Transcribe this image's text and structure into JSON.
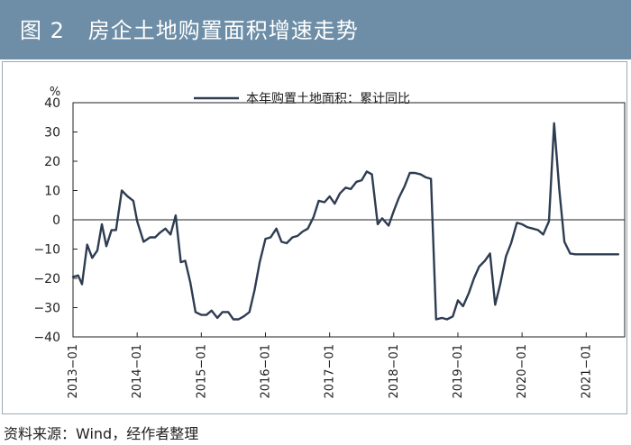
{
  "header": {
    "title": "图 2   房企土地购置面积增速走势"
  },
  "source": "资料来源：Wind，经作者整理",
  "colors": {
    "header_bg": "#6d8ea6",
    "line": "#2e3c52"
  },
  "chart_data": {
    "type": "line",
    "title": "房企土地购置面积增速走势",
    "xlabel": "",
    "ylabel": "%",
    "ylim": [
      -40,
      40
    ],
    "yticks": [
      40,
      30,
      20,
      10,
      0,
      -10,
      -20,
      -30,
      -40
    ],
    "ytick_labels": [
      "40",
      "30",
      "20",
      "10",
      "0",
      "−10",
      "−20",
      "−30",
      "−40"
    ],
    "xticks": [
      "2013−01",
      "2014−01",
      "2015−01",
      "2016−01",
      "2017−01",
      "2018−01",
      "2019−01",
      "2020−01",
      "2021−01"
    ],
    "xlim": [
      2013.0,
      2021.6
    ],
    "legend": {
      "position": "top-center",
      "label": "本年购置土地面积：累计同比"
    },
    "series": [
      {
        "name": "本年购置土地面积：累计同比",
        "x": [
          2013.0,
          2013.08,
          2013.14,
          2013.22,
          2013.3,
          2013.38,
          2013.45,
          2013.52,
          2013.6,
          2013.67,
          2013.76,
          2013.85,
          2013.94,
          2014.0,
          2014.1,
          2014.2,
          2014.28,
          2014.35,
          2014.44,
          2014.52,
          2014.6,
          2014.68,
          2014.75,
          2014.83,
          2014.91,
          2015.0,
          2015.08,
          2015.16,
          2015.25,
          2015.33,
          2015.42,
          2015.5,
          2015.58,
          2015.66,
          2015.75,
          2015.83,
          2015.91,
          2016.0,
          2016.08,
          2016.17,
          2016.25,
          2016.33,
          2016.42,
          2016.5,
          2016.58,
          2016.66,
          2016.75,
          2016.83,
          2016.92,
          2017.0,
          2017.08,
          2017.16,
          2017.25,
          2017.33,
          2017.42,
          2017.5,
          2017.58,
          2017.66,
          2017.75,
          2017.82,
          2017.92,
          2018.0,
          2018.08,
          2018.17,
          2018.25,
          2018.33,
          2018.42,
          2018.5,
          2018.58,
          2018.66,
          2018.75,
          2018.83,
          2018.92,
          2019.0,
          2019.08,
          2019.17,
          2019.25,
          2019.33,
          2019.42,
          2019.5,
          2019.58,
          2019.66,
          2019.75,
          2019.83,
          2019.92,
          2020.0,
          2020.08,
          2020.17,
          2020.25,
          2020.33,
          2020.42,
          2020.5,
          2020.58,
          2020.66,
          2020.75,
          2020.83,
          2020.92,
          2021.0,
          2021.08,
          2021.17,
          2021.25,
          2021.33,
          2021.42,
          2021.5
        ],
        "values": [
          -19.5,
          -19,
          -22,
          -8.5,
          -13,
          -10.5,
          -1.5,
          -9,
          -3.5,
          -3.5,
          10,
          8,
          6.5,
          -0.5,
          -7.5,
          -6,
          -6,
          -4.5,
          -3,
          -5,
          1.5,
          -14.5,
          -14,
          -21.5,
          -31.5,
          -32.5,
          -32.5,
          -31,
          -33.5,
          -31.5,
          -31.5,
          -34,
          -34,
          -33,
          -31.5,
          -24,
          -14.5,
          -6.5,
          -6,
          -3,
          -7.5,
          -8,
          -6,
          -5.5,
          -4,
          -3,
          1,
          6.5,
          6,
          8,
          5.5,
          9,
          11,
          10.5,
          13,
          13.5,
          16.5,
          15.5,
          -1.5,
          0.5,
          -2,
          3,
          7.5,
          11.5,
          16,
          16,
          15.5,
          14.5,
          14,
          -34,
          -33.5,
          -34,
          -33,
          -27.5,
          -29.5,
          -25,
          -20,
          -16,
          -14,
          -11.5,
          -29,
          -22,
          -12.5,
          -8,
          -1,
          -1.5,
          -2.5,
          -3,
          -3.5,
          -5,
          -0.5,
          33,
          10.5,
          -7.5,
          -11.5,
          -11.8,
          -11.8,
          -11.8,
          -11.8,
          -11.8,
          -11.8,
          -11.8,
          -11.8,
          -11.8
        ]
      }
    ]
  }
}
